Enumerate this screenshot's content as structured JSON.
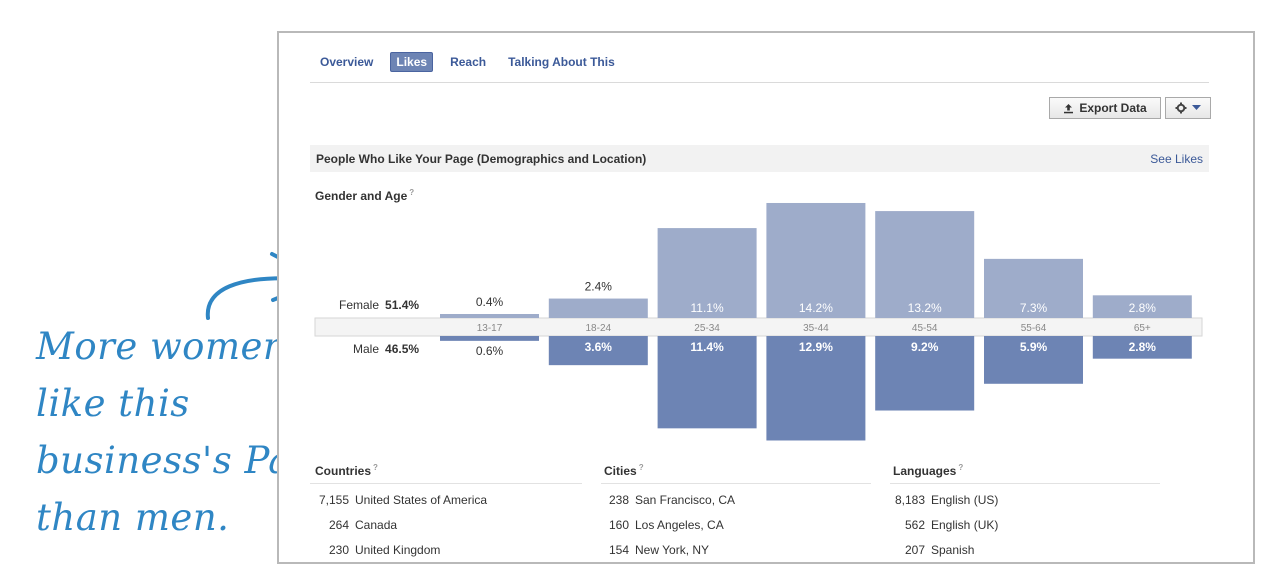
{
  "annotation": {
    "lines": [
      "More women",
      "like this",
      "business's Page",
      "than men."
    ]
  },
  "tabs": [
    {
      "label": "Overview",
      "active": false
    },
    {
      "label": "Likes",
      "active": true
    },
    {
      "label": "Reach",
      "active": false
    },
    {
      "label": "Talking About This",
      "active": false
    }
  ],
  "toolbar": {
    "export_label": "Export Data"
  },
  "section": {
    "title": "People Who Like Your Page (Demographics and Location)",
    "see_likes": "See Likes"
  },
  "gender_age": {
    "title": "Gender and Age",
    "female": {
      "label": "Female",
      "pct": "51.4%"
    },
    "male": {
      "label": "Male",
      "pct": "46.5%"
    }
  },
  "chart_data": {
    "type": "bar",
    "title": "Gender and Age",
    "categories": [
      "13-17",
      "18-24",
      "25-34",
      "35-44",
      "45-54",
      "55-64",
      "65+"
    ],
    "series": [
      {
        "name": "Female",
        "values": [
          0.4,
          2.4,
          11.1,
          14.2,
          13.2,
          7.3,
          2.8
        ],
        "labels": [
          "0.4%",
          "2.4%",
          "11.1%",
          "14.2%",
          "13.2%",
          "7.3%",
          "2.8%"
        ],
        "color": "#9eacca"
      },
      {
        "name": "Male",
        "values": [
          0.6,
          3.6,
          11.4,
          12.9,
          9.2,
          5.9,
          2.8
        ],
        "labels": [
          "0.6%",
          "3.6%",
          "11.4%",
          "12.9%",
          "9.2%",
          "5.9%",
          "2.8%"
        ],
        "color": "#6d84b4"
      }
    ]
  },
  "countries": {
    "title": "Countries",
    "rows": [
      {
        "count": "7,155",
        "name": "United States of America"
      },
      {
        "count": "264",
        "name": "Canada"
      },
      {
        "count": "230",
        "name": "United Kingdom"
      }
    ]
  },
  "cities": {
    "title": "Cities",
    "rows": [
      {
        "count": "238",
        "name": "San Francisco, CA"
      },
      {
        "count": "160",
        "name": "Los Angeles, CA"
      },
      {
        "count": "154",
        "name": "New York, NY"
      }
    ]
  },
  "languages": {
    "title": "Languages",
    "rows": [
      {
        "count": "8,183",
        "name": "English (US)"
      },
      {
        "count": "562",
        "name": "English (UK)"
      },
      {
        "count": "207",
        "name": "Spanish"
      }
    ]
  },
  "colors": {
    "link": "#3b5998",
    "female_bar": "#9eacca",
    "male_bar": "#6d84b4",
    "annotation": "#2f86c4"
  }
}
